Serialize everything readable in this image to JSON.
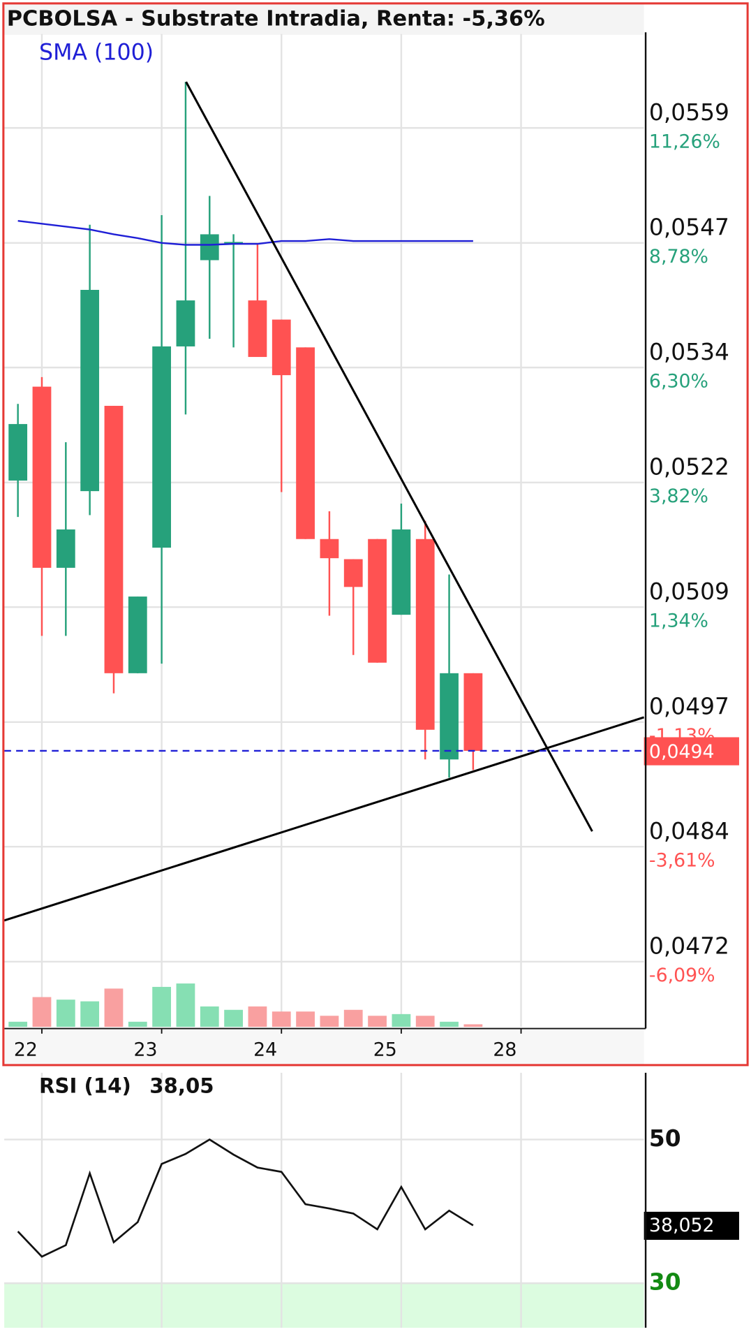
{
  "chart_data": [
    {
      "type": "candlestick",
      "title": "PCBOLSA - Substrate Intradia, Renta: -5,36%",
      "x": [
        0,
        1,
        2,
        3,
        4,
        5,
        6,
        7,
        8,
        9,
        10,
        11,
        12,
        13,
        14,
        15,
        16,
        17,
        18,
        19
      ],
      "open": [
        0.05222,
        0.0532,
        0.05131,
        0.05211,
        0.053,
        0.05021,
        0.05152,
        0.05362,
        0.05452,
        0.05469,
        0.0541,
        0.0539,
        0.05361,
        0.05161,
        0.0514,
        0.05161,
        0.05082,
        0.05161,
        0.04931,
        0.05021
      ],
      "high": [
        0.05302,
        0.0533,
        0.05262,
        0.05489,
        0.053,
        0.05101,
        0.05499,
        0.05638,
        0.05519,
        0.05479,
        0.05469,
        0.0539,
        0.05361,
        0.0519,
        0.0514,
        0.05161,
        0.05198,
        0.0518,
        0.05124,
        0.05021
      ],
      "low": [
        0.05184,
        0.0506,
        0.0506,
        0.05186,
        0.05,
        0.05021,
        0.05031,
        0.05291,
        0.0537,
        0.05361,
        0.05351,
        0.0521,
        0.05161,
        0.05081,
        0.0504,
        0.05032,
        0.05082,
        0.04931,
        0.04912,
        0.0492
      ],
      "close": [
        0.05281,
        0.05131,
        0.05171,
        0.05421,
        0.05021,
        0.05101,
        0.05362,
        0.0541,
        0.05479,
        0.05471,
        0.05351,
        0.05332,
        0.05161,
        0.05141,
        0.05111,
        0.05032,
        0.05171,
        0.04962,
        0.05021,
        0.0494
      ],
      "up_color": "#26a17b",
      "down_color": "#ff5252",
      "series": [
        {
          "name": "SMA (100)",
          "color": "#1f1fd6",
          "values": [
            0.05493,
            0.0549,
            0.05487,
            0.05484,
            0.05479,
            0.05475,
            0.0547,
            0.05468,
            0.05468,
            0.05469,
            0.05469,
            0.05472,
            0.05472,
            0.05474,
            0.05472,
            0.05472,
            0.05472,
            0.05472,
            0.05472,
            0.05472
          ]
        }
      ],
      "volume": {
        "values": [
          6,
          35,
          32,
          30,
          45,
          6,
          47,
          51,
          24,
          20,
          24,
          18,
          18,
          13,
          20,
          13,
          15,
          13,
          6,
          3
        ],
        "ylim": [
          0,
          60
        ],
        "up_color": "#86dfb3",
        "down_color": "#f9a0a0"
      },
      "trendlines": [
        {
          "x": [
            7.02,
            23.97
          ],
          "y": [
            0.05638,
            0.04856
          ],
          "color": "#000000"
        },
        {
          "x": [
            -0.57,
            26.13
          ],
          "y": [
            0.04763,
            0.04975
          ],
          "color": "#000000"
        }
      ],
      "last_price": {
        "value": 0.0494,
        "label": "0,0494",
        "color": "#ff5252"
      },
      "xlim": [
        -0.57,
        26.13
      ],
      "xticks": [
        {
          "value": 1,
          "label": "22"
        },
        {
          "value": 6,
          "label": "23"
        },
        {
          "value": 11,
          "label": "24"
        },
        {
          "value": 16,
          "label": "25"
        },
        {
          "value": 21,
          "label": "28"
        }
      ],
      "ylim": [
        0.04652,
        0.05688
      ],
      "yticks": [
        {
          "value": 0.0559,
          "label": "0,0559"
        },
        {
          "value": 0.0547,
          "label": "0,0547"
        },
        {
          "value": 0.0534,
          "label": "0,0534"
        },
        {
          "value": 0.0522,
          "label": "0,0522"
        },
        {
          "value": 0.0509,
          "label": "0,0509"
        },
        {
          "value": 0.0497,
          "label": "0,0497"
        },
        {
          "value": 0.0484,
          "label": "0,0484"
        },
        {
          "value": 0.0472,
          "label": "0,0472"
        }
      ],
      "ytick_percent_labels": [
        "11,26%",
        "8,78%",
        "6,30%",
        "3,82%",
        "1,34%",
        "-1,13%",
        "-3,61%",
        "-6,09%"
      ],
      "grid": true
    },
    {
      "type": "line",
      "title": "RSI (14)",
      "value_text": "38,05",
      "x": [
        0,
        1,
        2,
        3,
        4,
        5,
        6,
        7,
        8,
        9,
        10,
        11,
        12,
        13,
        14,
        15,
        16,
        17,
        18,
        19
      ],
      "values": [
        37.2,
        33.7,
        35.3,
        45.3,
        35.7,
        38.5,
        46.6,
        48.0,
        50.0,
        47.9,
        46.1,
        45.5,
        41.0,
        40.4,
        39.7,
        37.5,
        43.4,
        37.5,
        40.1,
        38.05
      ],
      "color": "#111111",
      "last_value": {
        "value": 38.052,
        "label": "38,052"
      },
      "zone": {
        "from": 23.8,
        "to": 30,
        "color": "#dcfce0"
      },
      "xlim": [
        -0.57,
        26.13
      ],
      "ylim": [
        23.8,
        59.3
      ],
      "yticks": [
        50,
        30
      ],
      "ytick_colors": [
        "#111111",
        "#138a13"
      ],
      "grid": true
    }
  ]
}
